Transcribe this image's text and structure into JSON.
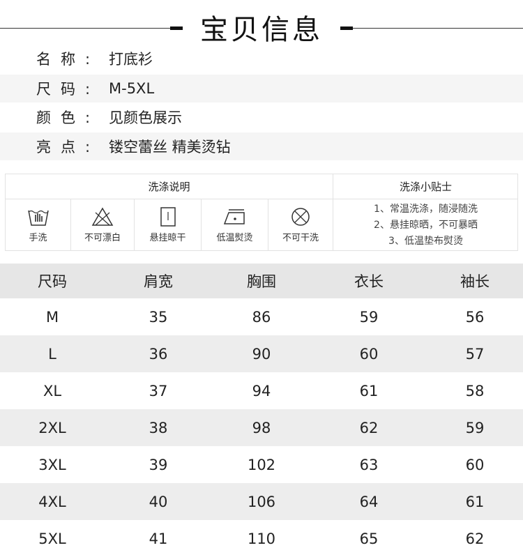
{
  "title": "宝贝信息",
  "info": [
    {
      "label": "名称:",
      "value": "打底衫"
    },
    {
      "label": "尺码:",
      "value": "M-5XL"
    },
    {
      "label": "颜色:",
      "value": "见颜色展示"
    },
    {
      "label": "亮点:",
      "value": "镂空蕾丝 精美烫钻"
    }
  ],
  "care": {
    "heading": "洗涤说明",
    "tips_heading": "洗涤小贴士",
    "items": [
      {
        "icon": "hand-wash-icon",
        "label": "手洗"
      },
      {
        "icon": "no-bleach-icon",
        "label": "不可漂白"
      },
      {
        "icon": "hang-dry-icon",
        "label": "悬挂晾干"
      },
      {
        "icon": "low-iron-icon",
        "label": "低温熨烫"
      },
      {
        "icon": "no-dry-clean-icon",
        "label": "不可干洗"
      }
    ],
    "tips": [
      "1、常温洗涤，随浸随洗",
      "2、悬挂晾晒，不可暴晒",
      "3、低温垫布熨烫"
    ]
  },
  "size_table": {
    "headers": [
      "尺码",
      "肩宽",
      "胸围",
      "衣长",
      "袖长"
    ],
    "rows": [
      [
        "M",
        "35",
        "86",
        "59",
        "56"
      ],
      [
        "L",
        "36",
        "90",
        "60",
        "57"
      ],
      [
        "XL",
        "37",
        "94",
        "61",
        "58"
      ],
      [
        "2XL",
        "38",
        "98",
        "62",
        "59"
      ],
      [
        "3XL",
        "39",
        "102",
        "63",
        "60"
      ],
      [
        "4XL",
        "40",
        "106",
        "64",
        "61"
      ],
      [
        "5XL",
        "41",
        "110",
        "65",
        "62"
      ]
    ]
  }
}
